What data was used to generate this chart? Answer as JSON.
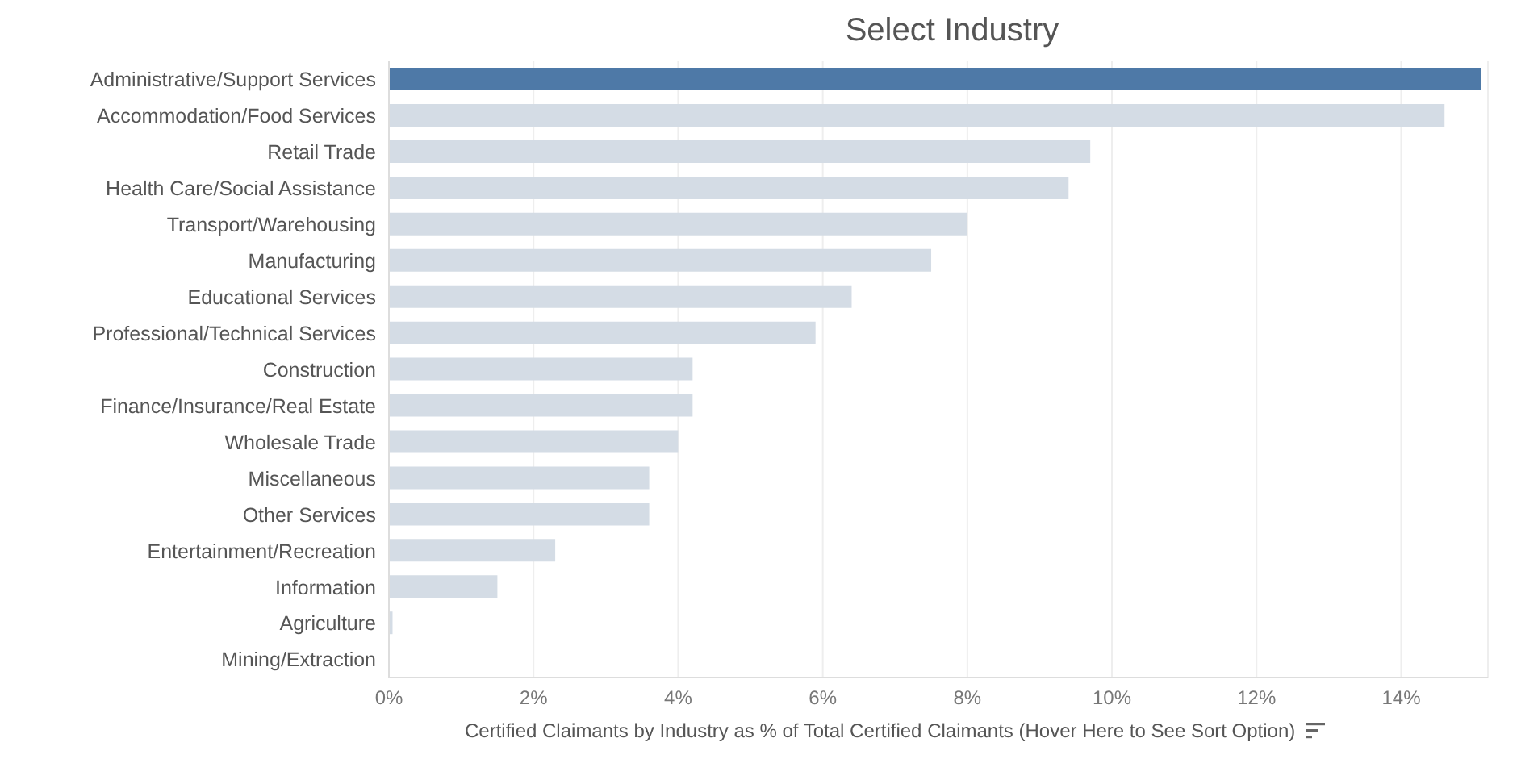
{
  "chart_data": {
    "type": "bar",
    "orientation": "horizontal",
    "title": "Select Industry",
    "xlabel": "Certified Claimants by Industry as % of Total Certified Claimants (Hover Here to See Sort Option)",
    "categories": [
      "Administrative/Support Services",
      "Accommodation/Food Services",
      "Retail Trade",
      "Health Care/Social Assistance",
      "Transport/Warehousing",
      "Manufacturing",
      "Educational Services",
      "Professional/Technical Services",
      "Construction",
      "Finance/Insurance/Real Estate",
      "Wholesale Trade",
      "Miscellaneous",
      "Other Services",
      "Entertainment/Recreation",
      "Information",
      "Agriculture",
      "Mining/Extraction"
    ],
    "values": [
      15.1,
      14.6,
      9.7,
      9.4,
      8.0,
      7.5,
      6.4,
      5.9,
      4.2,
      4.2,
      4.0,
      3.6,
      3.6,
      2.3,
      1.5,
      0.05,
      0
    ],
    "colors": [
      "#4e79a7",
      "#d4dce5",
      "#d4dce5",
      "#d4dce5",
      "#d4dce5",
      "#d4dce5",
      "#d4dce5",
      "#d4dce5",
      "#d4dce5",
      "#d4dce5",
      "#d4dce5",
      "#d4dce5",
      "#d4dce5",
      "#d4dce5",
      "#d4dce5",
      "#d4dce5",
      "#d4dce5"
    ],
    "xlim": [
      0,
      15.2
    ],
    "xticks": [
      {
        "value": 0,
        "label": "0%"
      },
      {
        "value": 2,
        "label": "2%"
      },
      {
        "value": 4,
        "label": "4%"
      },
      {
        "value": 6,
        "label": "6%"
      },
      {
        "value": 8,
        "label": "8%"
      },
      {
        "value": 10,
        "label": "10%"
      },
      {
        "value": 12,
        "label": "12%"
      },
      {
        "value": 14,
        "label": "14%"
      }
    ],
    "grid": "x",
    "legend": false
  }
}
